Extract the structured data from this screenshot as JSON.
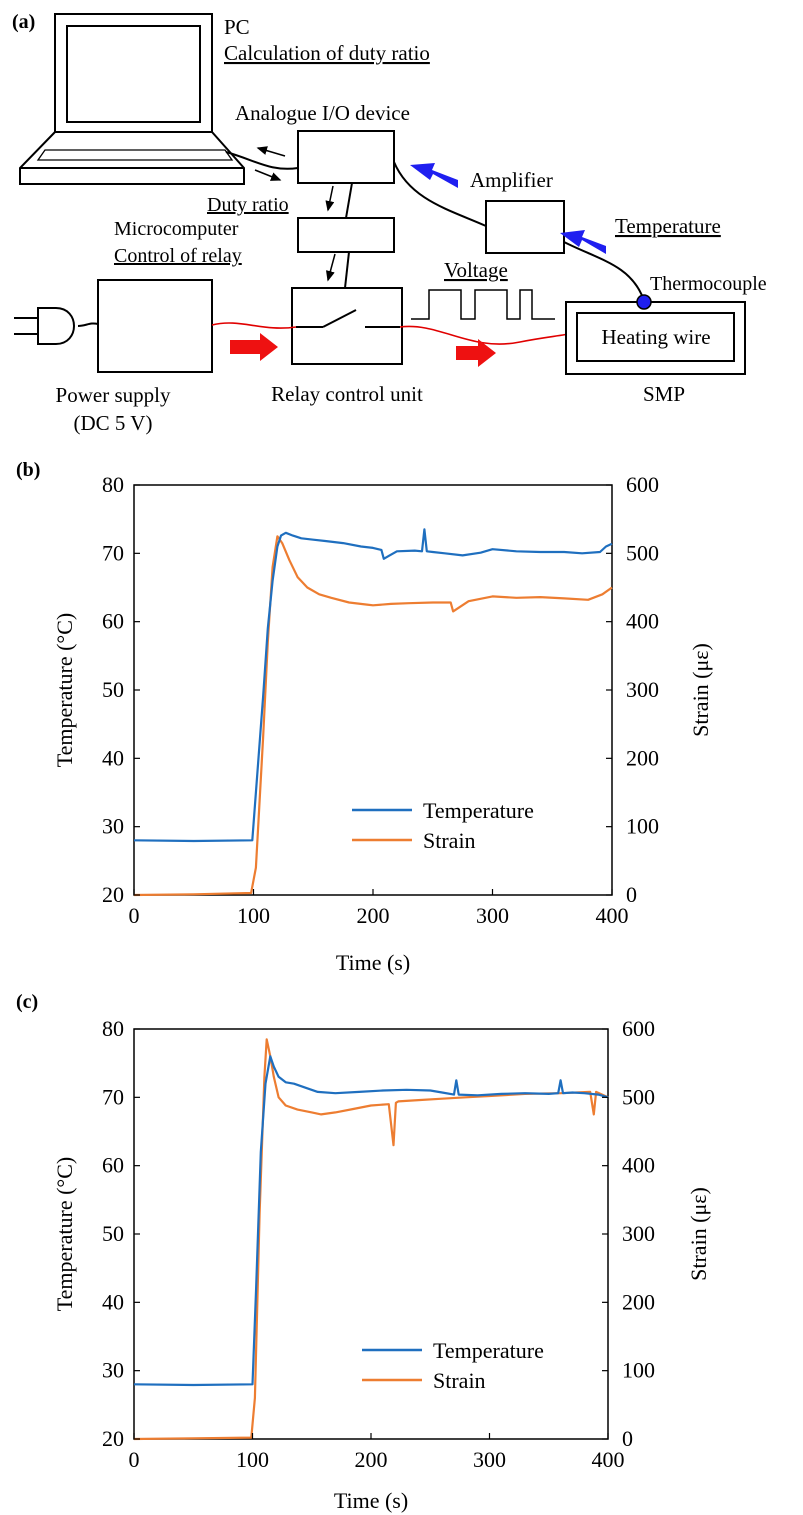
{
  "panel_labels": {
    "a": "(a)",
    "b": "(b)",
    "c": "(c)"
  },
  "diagram": {
    "pc": "PC",
    "pc_function": "Calculation of duty ratio",
    "io_device": "Analogue I/O device",
    "amplifier": "Amplifier",
    "duty_ratio": "Duty ratio",
    "microcomputer": "Microcomputer",
    "microcomputer_function": "Control of relay",
    "voltage": "Voltage",
    "temperature": "Temperature",
    "thermocouple": "Thermocouple",
    "heating_wire": "Heating wire",
    "smp": "SMP",
    "power_supply": "Power supply",
    "power_supply_spec": "(DC 5 V)",
    "relay": "Relay control unit",
    "colors": {
      "signal_arrow": "#1f1ff0",
      "power_arrow": "#ee1111",
      "power_line": "#e00000"
    }
  },
  "chart_data": [
    {
      "type": "line",
      "panel": "(b)",
      "xlabel": "Time (s)",
      "ylabel": "Temperature (°C)",
      "y2label": "Strain (με)",
      "xlim": [
        0,
        400
      ],
      "ylim": [
        20,
        80
      ],
      "y2lim": [
        0,
        600
      ],
      "x_ticks": [
        0,
        100,
        200,
        300,
        400
      ],
      "y_ticks": [
        20,
        30,
        40,
        50,
        60,
        70,
        80
      ],
      "y2_ticks": [
        0,
        100,
        200,
        300,
        400,
        500,
        600
      ],
      "legend": "center-right",
      "grid": false,
      "series": [
        {
          "name": "Temperature",
          "axis": "left",
          "color": "#1f6fbf",
          "x": [
            0,
            50,
            99,
            102,
            108,
            112,
            116,
            120,
            123,
            127,
            133,
            140,
            150,
            160,
            175,
            190,
            200,
            207,
            209,
            213,
            220,
            235,
            241,
            243,
            245,
            250,
            260,
            275,
            290,
            300,
            320,
            340,
            360,
            375,
            390,
            395,
            400
          ],
          "y": [
            28,
            27.9,
            28,
            35,
            49,
            59,
            66,
            71,
            72.6,
            73,
            72.6,
            72.2,
            72,
            71.8,
            71.5,
            71,
            70.8,
            70.5,
            69.2,
            69.6,
            70.3,
            70.4,
            70.3,
            73.5,
            70.3,
            70.2,
            70,
            69.7,
            70.1,
            70.6,
            70.3,
            70.2,
            70.2,
            70,
            70.2,
            71,
            71.4
          ]
        },
        {
          "name": "Strain",
          "axis": "right",
          "color": "#ed7d31",
          "x": [
            0,
            50,
            98,
            102,
            108,
            112,
            116,
            120,
            124,
            130,
            137,
            145,
            155,
            165,
            180,
            195,
            200,
            215,
            230,
            250,
            265,
            267,
            280,
            300,
            320,
            340,
            360,
            380,
            392,
            400
          ],
          "y": [
            0,
            1,
            3,
            40,
            230,
            370,
            480,
            525,
            515,
            490,
            465,
            450,
            440,
            435,
            428,
            425,
            424,
            426,
            427,
            428,
            428,
            415,
            430,
            437,
            435,
            436,
            434,
            432,
            440,
            450
          ]
        }
      ]
    },
    {
      "type": "line",
      "panel": "(c)",
      "xlabel": "Time (s)",
      "ylabel": "Temperature (°C)",
      "y2label": "Strain (με)",
      "xlim": [
        0,
        400
      ],
      "ylim": [
        20,
        80
      ],
      "y2lim": [
        0,
        600
      ],
      "x_ticks": [
        0,
        100,
        200,
        300,
        400
      ],
      "y_ticks": [
        20,
        30,
        40,
        50,
        60,
        70,
        80
      ],
      "y2_ticks": [
        0,
        100,
        200,
        300,
        400,
        500,
        600
      ],
      "legend": "center-right",
      "grid": false,
      "series": [
        {
          "name": "Temperature",
          "axis": "left",
          "color": "#1f6fbf",
          "x": [
            0,
            50,
            100,
            103,
            107,
            111,
            115,
            118,
            122,
            128,
            135,
            145,
            155,
            170,
            190,
            210,
            230,
            250,
            260,
            270,
            272,
            274,
            290,
            310,
            330,
            350,
            358,
            360,
            362,
            370,
            380,
            392,
            400
          ],
          "y": [
            28,
            27.9,
            28,
            42,
            62,
            72,
            76,
            74.5,
            73,
            72.2,
            72,
            71.4,
            70.8,
            70.6,
            70.8,
            71,
            71.1,
            71,
            70.7,
            70.4,
            72.5,
            70.4,
            70.3,
            70.5,
            70.6,
            70.5,
            70.6,
            72.5,
            70.6,
            70.7,
            70.6,
            70.4,
            70
          ]
        },
        {
          "name": "Strain",
          "axis": "right",
          "color": "#ed7d31",
          "x": [
            0,
            50,
            99,
            102,
            106,
            110,
            112,
            115,
            118,
            122,
            128,
            138,
            150,
            158,
            170,
            185,
            200,
            215,
            219,
            221,
            223,
            240,
            260,
            280,
            300,
            330,
            360,
            385,
            388,
            390,
            400
          ],
          "y": [
            0,
            1,
            2,
            60,
            330,
            530,
            585,
            560,
            530,
            500,
            488,
            482,
            478,
            475,
            478,
            483,
            488,
            490,
            430,
            492,
            494,
            496,
            498,
            500,
            502,
            505,
            506,
            508,
            475,
            508,
            500
          ]
        }
      ]
    }
  ]
}
